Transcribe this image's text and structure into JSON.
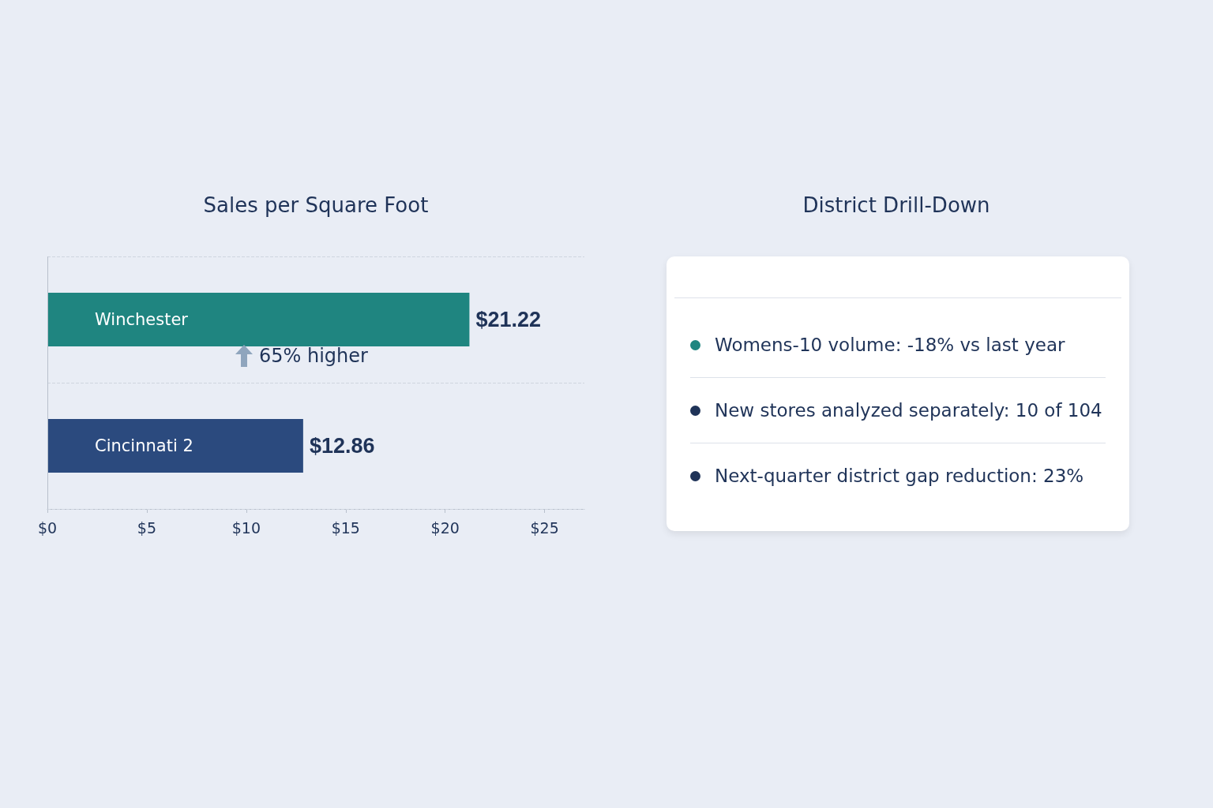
{
  "chart_data": [
    {
      "type": "bar",
      "title": "Sales per Square Foot",
      "orientation": "horizontal",
      "categories": [
        "Winchester",
        "Cincinnati 2"
      ],
      "values": [
        21.22,
        12.86
      ],
      "colors": [
        "#1f8580",
        "#2b4a7e"
      ],
      "value_labels": [
        "$21.22",
        "$12.86"
      ],
      "xlim": [
        0,
        27
      ],
      "xticks": [
        {
          "value": 0,
          "label": "$0"
        },
        {
          "value": 5,
          "label": "$5"
        },
        {
          "value": 10,
          "label": "$10"
        },
        {
          "value": 15,
          "label": "$15"
        },
        {
          "value": 20,
          "label": "$20"
        },
        {
          "value": 25,
          "label": "$25"
        }
      ],
      "grid": "y",
      "annotations": [
        "65% higher"
      ]
    },
    {
      "type": "other",
      "title": "District Drill-Down",
      "annotations": [
        "Womens-10 volume: -18% vs last year",
        "New stores analyzed separately: 10 of 104",
        "Next-quarter district gap reduction: 23%"
      ]
    }
  ]
}
